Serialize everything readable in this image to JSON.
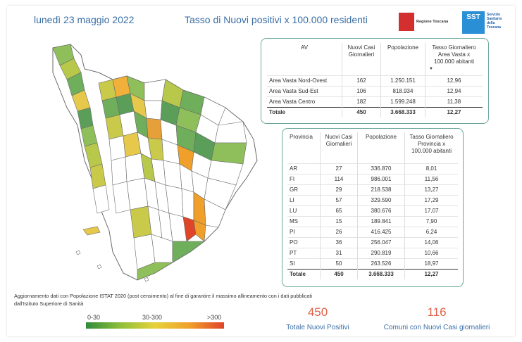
{
  "header": {
    "date": "lunedì 23 maggio 2022",
    "title": "Tasso di Nuovi positivi x 100.000 residenti",
    "logo_rt_text": "Regione Toscana",
    "logo_sst_text": "SST",
    "logo_sst_sub": "Servizio Sanitario della Toscana"
  },
  "av_table": {
    "headers": [
      "AV",
      "Nuovi Casi Giornalieri",
      "Popolazione",
      "Tasso Giornaliero Area Vasta x 100.000 abitanti"
    ],
    "rows": [
      [
        "Area Vasta Nord-Ovest",
        "162",
        "1.250.151",
        "12,96"
      ],
      [
        "Area Vasta Sud-Est",
        "106",
        "818.934",
        "12,94"
      ],
      [
        "Area Vasta Centro",
        "182",
        "1.599.248",
        "11,38"
      ]
    ],
    "total": [
      "Totale",
      "450",
      "3.668.333",
      "12,27"
    ]
  },
  "prov_table": {
    "headers": [
      "Provincia",
      "Nuovi Casi Giornalieri",
      "Popolazione",
      "Tasso Giornaliero Provincia x 100.000 abitanti"
    ],
    "rows": [
      [
        "AR",
        "27",
        "336.870",
        "8,01"
      ],
      [
        "FI",
        "114",
        "986.001",
        "11,56"
      ],
      [
        "GR",
        "29",
        "218.538",
        "13,27"
      ],
      [
        "LI",
        "57",
        "329.590",
        "17,29"
      ],
      [
        "LU",
        "65",
        "380.676",
        "17,07"
      ],
      [
        "MS",
        "15",
        "189.841",
        "7,90"
      ],
      [
        "PI",
        "26",
        "416.425",
        "6,24"
      ],
      [
        "PO",
        "36",
        "256.047",
        "14,06"
      ],
      [
        "PT",
        "31",
        "290.819",
        "10,66"
      ],
      [
        "SI",
        "50",
        "263.526",
        "18,97"
      ]
    ],
    "total": [
      "Totale",
      "450",
      "3.668.333",
      "12,27"
    ]
  },
  "note": "Aggiornamento dati con Popolazione ISTAT 2020 (post censimento) al fine di garantire il massimo allineamento con i dati pubblicati dall'Istituto Superiore di Sanità",
  "legend": {
    "low": "0-30",
    "mid": "30-300",
    "high": ">300"
  },
  "kpis": [
    {
      "value": "450",
      "label": "Totale Nuovi Positivi"
    },
    {
      "value": "116",
      "label": "Comuni con Nuovi Casi giornalieri"
    }
  ],
  "colors": {
    "accent": "#3a6ea5",
    "kpi": "#e0634a",
    "panel_border": "#6aa79a"
  }
}
